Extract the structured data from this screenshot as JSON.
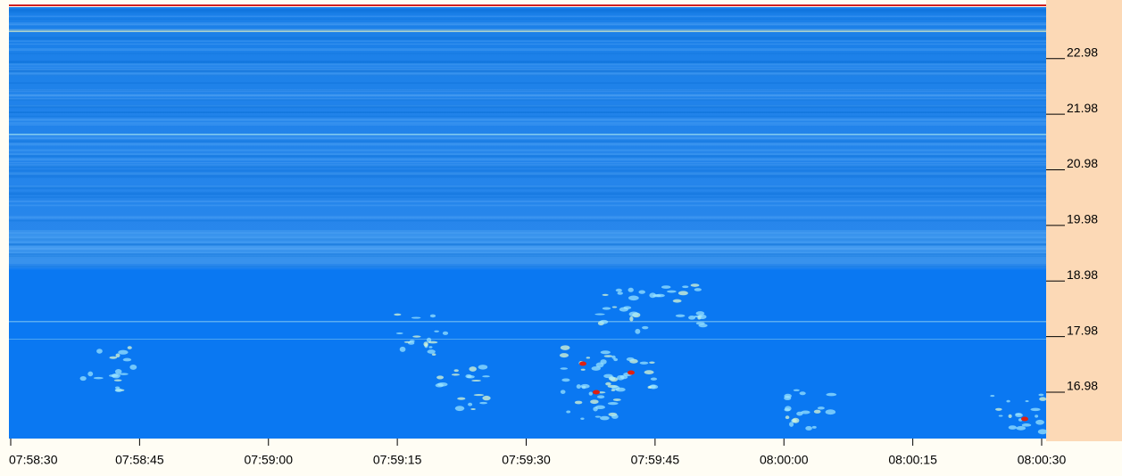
{
  "chart_data": {
    "type": "spectrogram",
    "xlim": [
      "07:58:30",
      "08:00:30"
    ],
    "xticks": [
      "07:58:30",
      "07:58:45",
      "07:59:00",
      "07:59:15",
      "07:59:30",
      "07:59:45",
      "08:00:00",
      "08:00:15",
      "08:00:30"
    ],
    "ylim": [
      16.05,
      23.81
    ],
    "yticks": [
      16.98,
      17.98,
      18.98,
      19.98,
      20.98,
      21.98,
      22.98
    ]
  }
}
